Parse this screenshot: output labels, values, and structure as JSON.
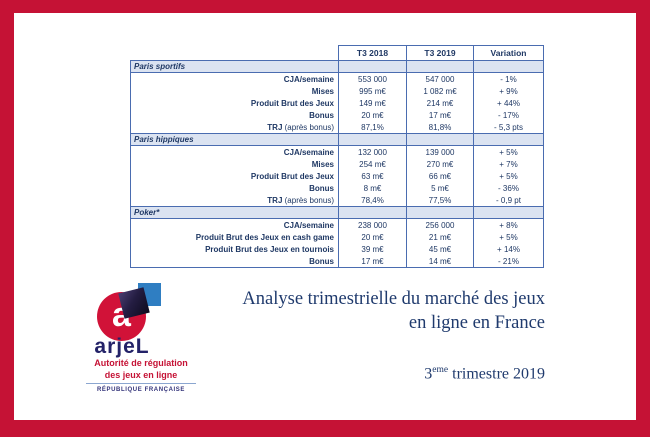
{
  "titles": {
    "line1": "Analyse trimestrielle du marché des jeux",
    "line2": "en ligne en France",
    "subtitle_num": "3",
    "subtitle_sup": "eme",
    "subtitle_rest": " trimestre 2019"
  },
  "logo": {
    "monogram": "a",
    "brand": "arjeL",
    "tagline1": "Autorité de régulation",
    "tagline2": "des jeux en ligne",
    "republic": "RÉPUBLIQUE FRANÇAISE"
  },
  "colors": {
    "frame_red": "#c51235",
    "navy_text": "#1f3864",
    "table_border_blue": "#4a6cb0",
    "section_row_bg": "#dbe3f1",
    "logo_circle_red": "#d11238",
    "logo_blue_square": "#2f7ec2"
  },
  "table": {
    "columns": [
      "T3 2018",
      "T3 2019",
      "Variation"
    ],
    "sections": [
      {
        "name": "Paris sportifs",
        "rows": [
          {
            "label": "CJA/semaine",
            "note": "",
            "t3_2018": "553 000",
            "t3_2019": "547 000",
            "variation": "- 1%"
          },
          {
            "label": "Mises",
            "note": "",
            "t3_2018": "995 m€",
            "t3_2019": "1 082 m€",
            "variation": "+ 9%"
          },
          {
            "label": "Produit Brut des Jeux",
            "note": "",
            "t3_2018": "149 m€",
            "t3_2019": "214 m€",
            "variation": "+ 44%"
          },
          {
            "label": "Bonus",
            "note": "",
            "t3_2018": "20 m€",
            "t3_2019": "17 m€",
            "variation": "- 17%"
          },
          {
            "label": "TRJ",
            "note": " (après bonus)",
            "t3_2018": "87,1%",
            "t3_2019": "81,8%",
            "variation": "- 5,3 pts"
          }
        ]
      },
      {
        "name": "Paris hippiques",
        "rows": [
          {
            "label": "CJA/semaine",
            "note": "",
            "t3_2018": "132 000",
            "t3_2019": "139 000",
            "variation": "+ 5%"
          },
          {
            "label": "Mises",
            "note": "",
            "t3_2018": "254 m€",
            "t3_2019": "270 m€",
            "variation": "+ 7%"
          },
          {
            "label": "Produit Brut des Jeux",
            "note": "",
            "t3_2018": "63 m€",
            "t3_2019": "66 m€",
            "variation": "+ 5%"
          },
          {
            "label": "Bonus",
            "note": "",
            "t3_2018": "8 m€",
            "t3_2019": "5 m€",
            "variation": "- 36%"
          },
          {
            "label": "TRJ",
            "note": " (après bonus)",
            "t3_2018": "78,4%",
            "t3_2019": "77,5%",
            "variation": "- 0,9 pt"
          }
        ]
      },
      {
        "name": "Poker*",
        "rows": [
          {
            "label": "CJA/semaine",
            "note": "",
            "t3_2018": "238 000",
            "t3_2019": "256 000",
            "variation": "+ 8%"
          },
          {
            "label": "Produit Brut des Jeux en cash game",
            "note": "",
            "t3_2018": "20 m€",
            "t3_2019": "21 m€",
            "variation": "+ 5%"
          },
          {
            "label": "Produit Brut des Jeux en tournois",
            "note": "",
            "t3_2018": "39 m€",
            "t3_2019": "45 m€",
            "variation": "+ 14%"
          },
          {
            "label": "Bonus",
            "note": "",
            "t3_2018": "17 m€",
            "t3_2019": "14 m€",
            "variation": "- 21%"
          }
        ]
      }
    ]
  }
}
